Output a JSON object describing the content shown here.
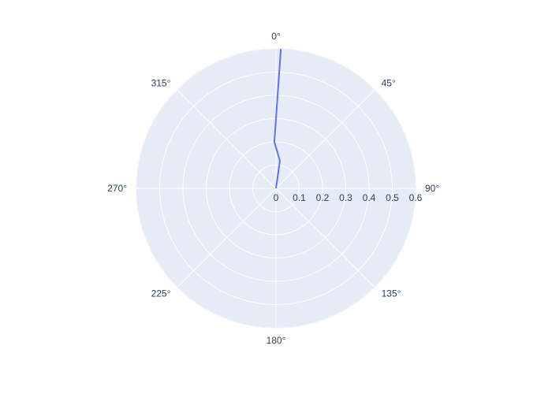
{
  "chart_data": {
    "type": "line",
    "subtype": "polar",
    "title": "",
    "angular_axis": {
      "direction": "clockwise",
      "rotation_zero": "top",
      "ticks": [
        {
          "deg": 0,
          "label": "0°"
        },
        {
          "deg": 45,
          "label": "45°"
        },
        {
          "deg": 90,
          "label": "90°"
        },
        {
          "deg": 135,
          "label": "135°"
        },
        {
          "deg": 180,
          "label": "180°"
        },
        {
          "deg": 225,
          "label": "225°"
        },
        {
          "deg": 270,
          "label": "270°"
        },
        {
          "deg": 315,
          "label": "315°"
        }
      ]
    },
    "radial_axis": {
      "range": [
        0,
        0.6
      ],
      "ticks": [
        {
          "value": 0,
          "label": "0"
        },
        {
          "value": 0.1,
          "label": "0.1"
        },
        {
          "value": 0.2,
          "label": "0.2"
        },
        {
          "value": 0.3,
          "label": "0.3"
        },
        {
          "value": 0.4,
          "label": "0.4"
        },
        {
          "value": 0.5,
          "label": "0.5"
        },
        {
          "value": 0.6,
          "label": "0.6"
        }
      ]
    },
    "grid": true,
    "legend": "none",
    "colors": {
      "plot_background": "#e5ecf6",
      "grid": "#ffffff",
      "tick_text": "#2a3f5f",
      "series": "#636efa"
    },
    "series": [
      {
        "points": [
          {
            "theta": 0,
            "r": 0
          },
          {
            "theta": 8,
            "r": 0.12
          },
          {
            "theta": -2,
            "r": 0.2
          },
          {
            "theta": 2,
            "r": 0.6
          }
        ]
      }
    ]
  }
}
